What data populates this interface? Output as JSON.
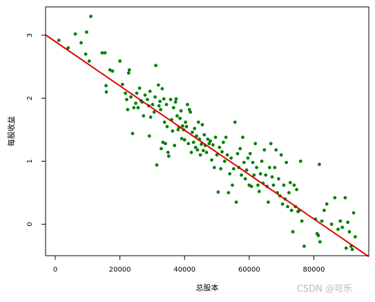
{
  "chart_data": {
    "type": "scatter",
    "title": "",
    "xlabel": "总股本",
    "ylabel": "每股收益",
    "xlim": [
      -3000,
      97000
    ],
    "ylim": [
      -0.5,
      3.45
    ],
    "x_ticks": [
      0,
      20000,
      40000,
      60000,
      80000
    ],
    "y_ticks": [
      0,
      1,
      2,
      3
    ],
    "x_tick_labels": [
      "0",
      "20000",
      "40000",
      "60000",
      "80000"
    ],
    "y_tick_labels": [
      "0",
      "1",
      "2",
      "3"
    ],
    "grid": false,
    "point_color": "#008000",
    "line_color": "#e00000",
    "fit_line": {
      "intercept": 2.9,
      "slope": -3.52e-05
    },
    "points": [
      [
        1100,
        2.92
      ],
      [
        4000,
        2.8
      ],
      [
        6200,
        3.02
      ],
      [
        8000,
        2.88
      ],
      [
        9400,
        2.7
      ],
      [
        9700,
        3.05
      ],
      [
        10500,
        2.59
      ],
      [
        11000,
        3.3
      ],
      [
        14500,
        2.72
      ],
      [
        15400,
        2.72
      ],
      [
        15700,
        2.2
      ],
      [
        15800,
        2.1
      ],
      [
        16900,
        2.45
      ],
      [
        17700,
        2.43
      ],
      [
        20000,
        2.59
      ],
      [
        20800,
        2.22
      ],
      [
        21700,
        2.08
      ],
      [
        22100,
        1.98
      ],
      [
        22400,
        1.82
      ],
      [
        22700,
        2.4
      ],
      [
        22900,
        2.45
      ],
      [
        23400,
        2.02
      ],
      [
        23900,
        1.44
      ],
      [
        24300,
        1.85
      ],
      [
        24900,
        1.92
      ],
      [
        25200,
        2.08
      ],
      [
        25600,
        1.85
      ],
      [
        26100,
        2.16
      ],
      [
        26500,
        1.96
      ],
      [
        26900,
        1.94
      ],
      [
        27300,
        1.72
      ],
      [
        27800,
        2.05
      ],
      [
        28500,
        1.98
      ],
      [
        28900,
        1.88
      ],
      [
        29100,
        1.4
      ],
      [
        29300,
        2.11
      ],
      [
        29500,
        1.7
      ],
      [
        30100,
        1.9
      ],
      [
        30600,
        1.78
      ],
      [
        30900,
        2.02
      ],
      [
        31100,
        2.52
      ],
      [
        31400,
        0.94
      ],
      [
        31900,
        2.21
      ],
      [
        32100,
        1.88
      ],
      [
        32400,
        1.95
      ],
      [
        32600,
        1.82
      ],
      [
        32800,
        1.2
      ],
      [
        33100,
        2.15
      ],
      [
        33300,
        1.3
      ],
      [
        33600,
        1.99
      ],
      [
        33800,
        1.62
      ],
      [
        34100,
        1.28
      ],
      [
        34400,
        1.9
      ],
      [
        34600,
        1.55
      ],
      [
        34900,
        1.14
      ],
      [
        35100,
        1.08
      ],
      [
        35700,
        1.98
      ],
      [
        36000,
        1.66
      ],
      [
        36300,
        1.48
      ],
      [
        36600,
        1.85
      ],
      [
        36900,
        1.25
      ],
      [
        37200,
        1.94
      ],
      [
        37400,
        1.99
      ],
      [
        37700,
        1.72
      ],
      [
        38000,
        1.5
      ],
      [
        38300,
        1.54
      ],
      [
        38600,
        1.68
      ],
      [
        38900,
        1.8
      ],
      [
        39100,
        1.36
      ],
      [
        39400,
        1.56
      ],
      [
        39700,
        1.5
      ],
      [
        40000,
        1.34
      ],
      [
        40300,
        1.62
      ],
      [
        40600,
        1.55
      ],
      [
        40900,
        1.9
      ],
      [
        41200,
        1.28
      ],
      [
        41500,
        1.82
      ],
      [
        41800,
        1.78
      ],
      [
        42100,
        1.14
      ],
      [
        42400,
        1.46
      ],
      [
        42800,
        1.3
      ],
      [
        43100,
        1.52
      ],
      [
        43400,
        1.22
      ],
      [
        43700,
        1.4
      ],
      [
        44000,
        1.18
      ],
      [
        44300,
        1.62
      ],
      [
        44600,
        1.35
      ],
      [
        44900,
        1.1
      ],
      [
        45200,
        1.27
      ],
      [
        45500,
        1.58
      ],
      [
        45800,
        1.17
      ],
      [
        46100,
        1.42
      ],
      [
        46400,
        1.25
      ],
      [
        46800,
        1.14
      ],
      [
        47200,
        1.35
      ],
      [
        47600,
        1.28
      ],
      [
        48000,
        1.32
      ],
      [
        48400,
        1.02
      ],
      [
        48800,
        1.26
      ],
      [
        49200,
        0.9
      ],
      [
        49600,
        1.38
      ],
      [
        50000,
        1.1
      ],
      [
        50400,
        0.51
      ],
      [
        50800,
        1.22
      ],
      [
        51200,
        0.88
      ],
      [
        51600,
        1.15
      ],
      [
        52000,
        1.3
      ],
      [
        52400,
        1.0
      ],
      [
        52800,
        1.38
      ],
      [
        53200,
        1.1
      ],
      [
        53600,
        0.5
      ],
      [
        54000,
        0.8
      ],
      [
        54400,
        1.05
      ],
      [
        54800,
        0.62
      ],
      [
        55200,
        0.88
      ],
      [
        55600,
        1.62
      ],
      [
        56000,
        0.35
      ],
      [
        56400,
        1.12
      ],
      [
        56800,
        0.9
      ],
      [
        57200,
        1.2
      ],
      [
        57600,
        0.78
      ],
      [
        58000,
        1.38
      ],
      [
        58400,
        0.98
      ],
      [
        58800,
        0.72
      ],
      [
        59200,
        0.86
      ],
      [
        59600,
        1.05
      ],
      [
        60000,
        0.62
      ],
      [
        60300,
        1.12
      ],
      [
        60700,
        0.6
      ],
      [
        61100,
        0.98
      ],
      [
        61500,
        0.78
      ],
      [
        61900,
        1.28
      ],
      [
        62300,
        0.9
      ],
      [
        62700,
        0.62
      ],
      [
        63100,
        0.52
      ],
      [
        63500,
        0.8
      ],
      [
        63900,
        1.0
      ],
      [
        64300,
        0.65
      ],
      [
        64700,
        1.18
      ],
      [
        65100,
        0.78
      ],
      [
        65500,
        0.6
      ],
      [
        65900,
        0.35
      ],
      [
        66300,
        0.9
      ],
      [
        66700,
        1.28
      ],
      [
        67100,
        0.75
      ],
      [
        67500,
        0.62
      ],
      [
        67900,
        0.9
      ],
      [
        68300,
        1.18
      ],
      [
        68700,
        0.5
      ],
      [
        69100,
        0.72
      ],
      [
        69500,
        0.45
      ],
      [
        69900,
        1.1
      ],
      [
        70300,
        0.32
      ],
      [
        70700,
        0.62
      ],
      [
        71100,
        0.4
      ],
      [
        71500,
        0.98
      ],
      [
        71900,
        0.28
      ],
      [
        72300,
        0.5
      ],
      [
        72700,
        0.66
      ],
      [
        73100,
        0.22
      ],
      [
        73500,
        -0.12
      ],
      [
        73900,
        0.62
      ],
      [
        74300,
        0.28
      ],
      [
        74700,
        0.55
      ],
      [
        75100,
        0.2
      ],
      [
        75500,
        0.22
      ],
      [
        75900,
        1.0
      ],
      [
        76300,
        0.05
      ],
      [
        77000,
        -0.35
      ],
      [
        80500,
        0.08
      ],
      [
        81000,
        -0.15
      ],
      [
        81400,
        -0.18
      ],
      [
        81700,
        0.95
      ],
      [
        81900,
        -0.28
      ],
      [
        82500,
        0.05
      ],
      [
        83200,
        0.22
      ],
      [
        84000,
        0.32
      ],
      [
        85500,
        0.0
      ],
      [
        86500,
        0.42
      ],
      [
        87500,
        -0.08
      ],
      [
        88200,
        0.05
      ],
      [
        88800,
        -0.05
      ],
      [
        89700,
        0.42
      ],
      [
        90000,
        -0.38
      ],
      [
        90500,
        0.03
      ],
      [
        91000,
        -0.12
      ],
      [
        91500,
        -0.35
      ],
      [
        91900,
        -0.4
      ],
      [
        92300,
        0.18
      ],
      [
        92800,
        -0.2
      ]
    ]
  },
  "watermark": "CSDN @可乐"
}
